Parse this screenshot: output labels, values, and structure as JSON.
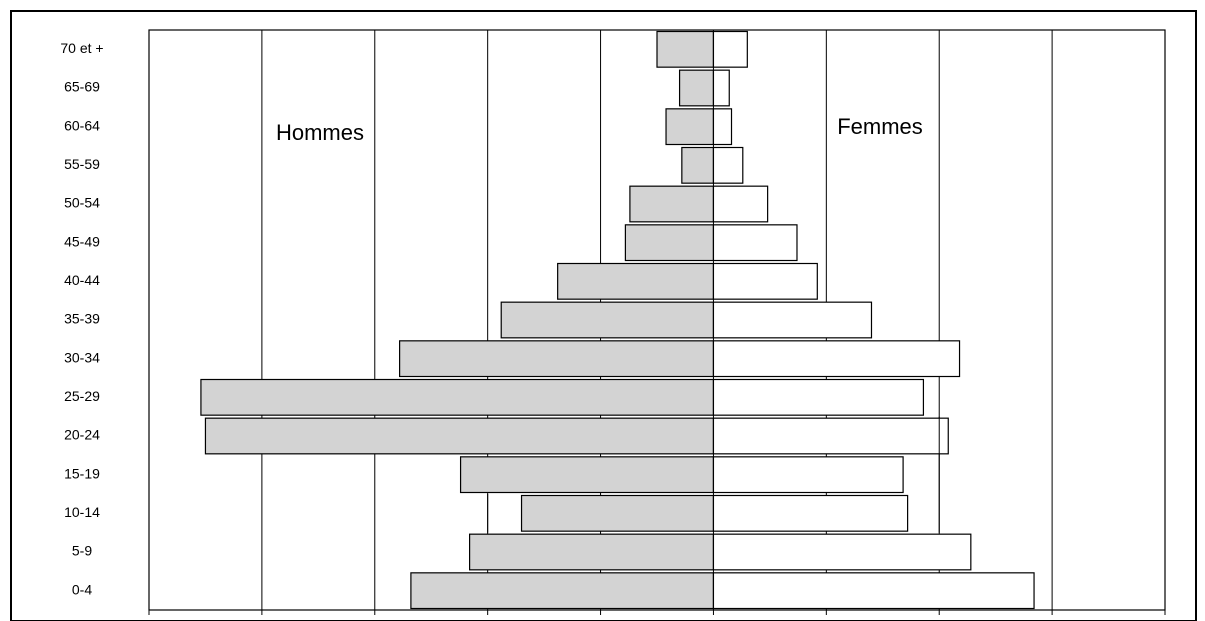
{
  "chart_data": {
    "type": "bar",
    "orientation": "horizontal",
    "layout": "population-pyramid",
    "categories": [
      "0-4",
      "5-9",
      "10-14",
      "15-19",
      "20-24",
      "25-29",
      "30-34",
      "35-39",
      "40-44",
      "45-49",
      "50-54",
      "55-59",
      "60-64",
      "65-69",
      "70 et +"
    ],
    "series": [
      {
        "name": "Hommes",
        "side": "left",
        "color": "#d3d3d3",
        "values": [
          134,
          108,
          85,
          112,
          225,
          227,
          139,
          94,
          69,
          39,
          37,
          14,
          21,
          15,
          25
        ]
      },
      {
        "name": "Femmes",
        "side": "right",
        "color": "#ffffff",
        "values": [
          142,
          114,
          86,
          84,
          104,
          93,
          109,
          70,
          46,
          37,
          24,
          13,
          8,
          7,
          15
        ]
      }
    ],
    "x_ticks": [
      "250",
      "200",
      "150",
      "100",
      "50",
      "0",
      "50",
      "100",
      "150",
      "200"
    ],
    "xlim_left": 250,
    "xlim_right": 200,
    "grid": "vertical",
    "extra_gridline_segments": [
      {
        "value": -100,
        "from_category": "10-14",
        "to_category": "10-14"
      },
      {
        "value": 100,
        "from_category": "10-14",
        "to_category": "20-24"
      }
    ]
  }
}
